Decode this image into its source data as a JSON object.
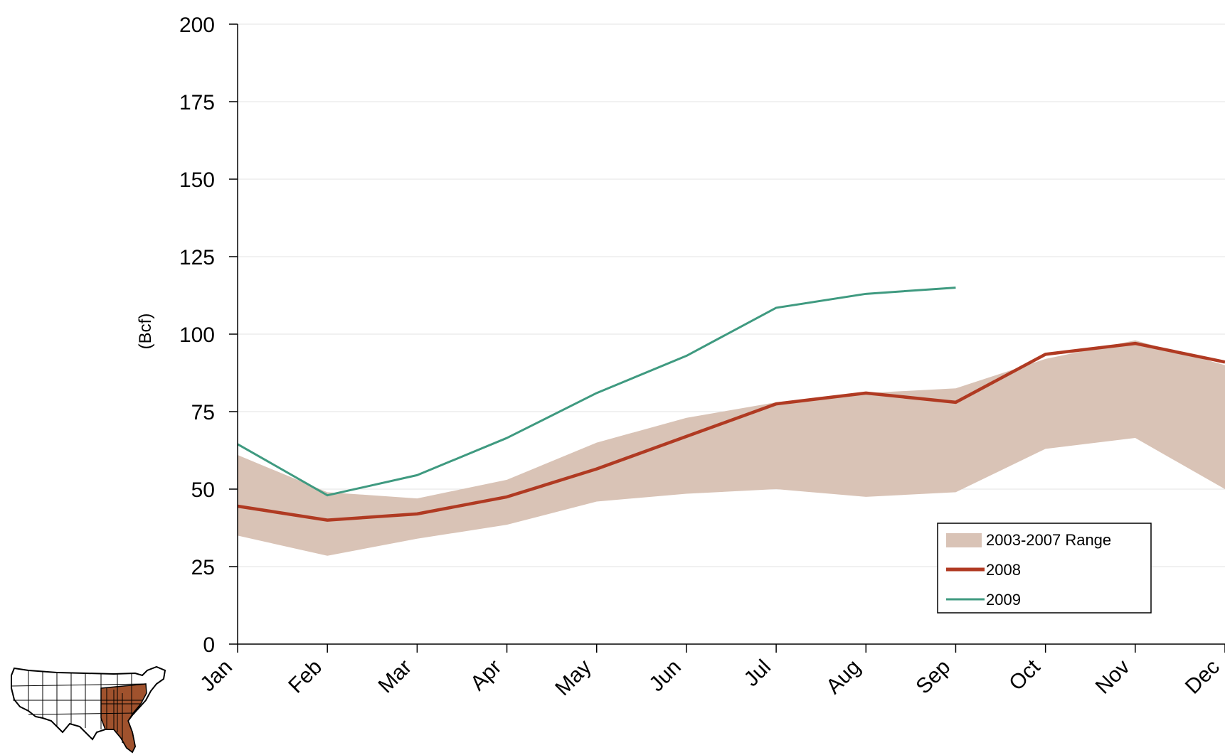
{
  "chart_data": {
    "type": "line",
    "ylabel": "(Bcf)",
    "ylim": [
      0,
      200
    ],
    "yticks": [
      0,
      25,
      50,
      75,
      100,
      125,
      150,
      175,
      200
    ],
    "categories": [
      "Jan",
      "Feb",
      "Mar",
      "Apr",
      "May",
      "Jun",
      "Jul",
      "Aug",
      "Sep",
      "Oct",
      "Nov",
      "Dec"
    ],
    "range_band": {
      "name": "2003-2007 Range",
      "color": "#d9c3b6",
      "low": [
        35,
        28.5,
        34,
        38.5,
        46,
        48.5,
        50,
        47.5,
        49,
        63,
        66.5,
        50
      ],
      "high": [
        61,
        49,
        47,
        53,
        65,
        73,
        78,
        81,
        82.5,
        92,
        98,
        90
      ]
    },
    "series": [
      {
        "name": "2008",
        "color": "#b03a22",
        "values": [
          44.5,
          40,
          42,
          47.5,
          56.5,
          67,
          77.5,
          81,
          78,
          93.5,
          97,
          91
        ]
      },
      {
        "name": "2009",
        "color": "#3f9a80",
        "values": [
          64.5,
          48,
          54.5,
          66.5,
          81,
          93,
          108.5,
          113,
          115,
          null,
          null,
          null
        ]
      }
    ],
    "grid": true,
    "legend": "bottom-right"
  }
}
